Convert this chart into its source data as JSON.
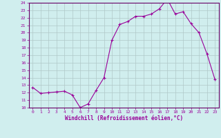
{
  "hours": [
    0,
    1,
    2,
    3,
    4,
    5,
    6,
    7,
    8,
    9,
    10,
    11,
    12,
    13,
    14,
    15,
    16,
    17,
    18,
    19,
    20,
    21,
    22,
    23
  ],
  "values": [
    12.7,
    11.9,
    12.0,
    12.1,
    12.2,
    11.7,
    10.0,
    10.5,
    12.3,
    14.0,
    19.0,
    21.1,
    21.5,
    22.2,
    22.2,
    22.5,
    23.2,
    24.5,
    22.5,
    22.8,
    21.2,
    20.0,
    17.2,
    13.8
  ],
  "ylim": [
    10,
    24
  ],
  "yticks": [
    10,
    11,
    12,
    13,
    14,
    15,
    16,
    17,
    18,
    19,
    20,
    21,
    22,
    23,
    24
  ],
  "xlim_min": -0.5,
  "xlim_max": 23.5,
  "xticks": [
    0,
    1,
    2,
    3,
    4,
    5,
    6,
    7,
    8,
    9,
    10,
    11,
    12,
    13,
    14,
    15,
    16,
    17,
    18,
    19,
    20,
    21,
    22,
    23
  ],
  "xlabel": "Windchill (Refroidissement éolien,°C)",
  "line_color": "#990099",
  "marker": "+",
  "background_color": "#d0eeee",
  "grid_color": "#b0c8c8",
  "axis_color": "#660066",
  "tick_color": "#990099",
  "label_color": "#990099",
  "figsize": [
    3.2,
    2.0
  ],
  "dpi": 100
}
